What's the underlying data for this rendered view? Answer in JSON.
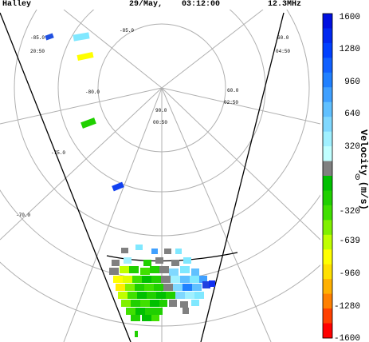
{
  "header": {
    "station": "Halley",
    "date": "29/May,",
    "time": "03:12:00",
    "frequency": "12.3MHz"
  },
  "plot": {
    "latitude_labels": [
      "-85.0",
      "-80.0",
      "-75.0",
      "-70.0"
    ],
    "mlt_labels": [
      {
        "lat": "-85.0",
        "time": "20:50"
      },
      {
        "lat": "90.0",
        "time": "00:50"
      },
      {
        "lat": "60.0",
        "time": "04:50"
      },
      {
        "lat": "60.0",
        "time": "02:50"
      }
    ],
    "colors": {
      "ground_scatter": "#808080",
      "beam_line": "#000000",
      "grid": "#b0b0b0"
    }
  },
  "colorbar": {
    "title": "Velocity (m/s)",
    "ticks": [
      "1600",
      "1280",
      "960",
      "640",
      "320",
      "0",
      "-320",
      "-639",
      "-960",
      "-1280",
      "-1600"
    ],
    "colors": [
      "#0010e0",
      "#0028f0",
      "#0040ff",
      "#1060ff",
      "#2080ff",
      "#40a0ff",
      "#60c0ff",
      "#80d8ff",
      "#a0f0ff",
      "#c0ffff",
      "#808080",
      "#00c000",
      "#20d000",
      "#40e000",
      "#80f000",
      "#c0ff00",
      "#ffff00",
      "#ffe000",
      "#ffb000",
      "#ff8000",
      "#ff4000",
      "#ff0000"
    ]
  }
}
